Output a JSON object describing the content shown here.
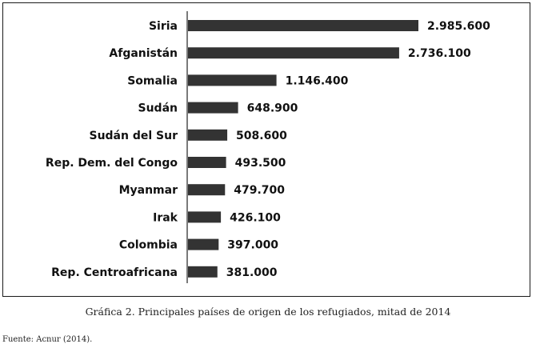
{
  "chart_data": {
    "type": "bar",
    "orientation": "horizontal",
    "categories": [
      "Siria",
      "Afganistán",
      "Somalia",
      "Sudán",
      "Sudán del Sur",
      "Rep. Dem. del Congo",
      "Myanmar",
      "Irak",
      "Colombia",
      "Rep. Centroafricana"
    ],
    "values": [
      2985600,
      2736100,
      1146400,
      648900,
      508600,
      493500,
      479700,
      426100,
      397000,
      381000
    ],
    "value_labels": [
      "2.985.600",
      "2.736.100",
      "1.146.400",
      "648.900",
      "508.600",
      "493.500",
      "479.700",
      "426.100",
      "397.000",
      "381.000"
    ],
    "bar_color": "#333333",
    "grid": false
  },
  "caption": "Gráfica 2. Principales países de origen de los refugiados, mitad de 2014",
  "source": "Fuente: Acnur (2014)."
}
